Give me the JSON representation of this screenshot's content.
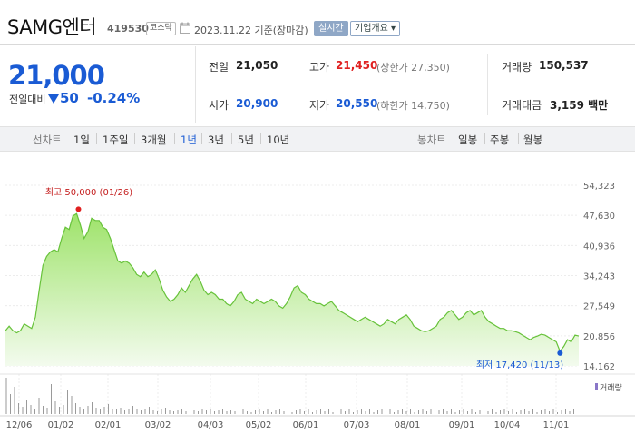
{
  "header": {
    "name": "SAMG엔터",
    "code": "419530",
    "market": "코스닥",
    "date": "2023.11.22",
    "basis": "기준(장마감)",
    "realtime_label": "실시간",
    "overview_label": "기업개요 ▾"
  },
  "quote": {
    "price": "21,000",
    "change_label": "전일대비",
    "change": "50",
    "change_pct": "-0.24%",
    "prev_label": "전일",
    "prev": "21,050",
    "high_label": "고가",
    "high": "21,450",
    "upper_limit": "(상한가 27,350)",
    "volume_label": "거래량",
    "volume": "150,537",
    "open_label": "시가",
    "open": "20,900",
    "low_label": "저가",
    "low": "20,550",
    "lower_limit": "(하한가 14,750)",
    "amount_label": "거래대금",
    "amount": "3,159 백만"
  },
  "tabs": {
    "line_label": "선차트",
    "periods": [
      "1일",
      "1주일",
      "3개월",
      "1년",
      "3년",
      "5년",
      "10년"
    ],
    "active_period": "1년",
    "candle_label": "봉차트",
    "candles": [
      "일봉",
      "주봉",
      "월봉"
    ]
  },
  "colors": {
    "up": "#e02020",
    "down": "#1a5bd4",
    "area_top": "#9ee36a",
    "area_bottom": "#f3fbee",
    "line": "#67c23a"
  },
  "chart_data": {
    "type": "area",
    "y_ticks": [
      "54,323",
      "47,630",
      "40,936",
      "34,243",
      "27,549",
      "20,856",
      "14,162"
    ],
    "ylim": [
      14162,
      54323
    ],
    "x_ticks": [
      "12/06",
      "01/02",
      "02/01",
      "03/02",
      "04/03",
      "05/02",
      "06/01",
      "07/03",
      "08/01",
      "09/01",
      "10/04",
      "11/01"
    ],
    "max_annotation": "최고 50,000 (01/26)",
    "min_annotation": "최저 17,420 (11/13)",
    "volume_label": "거래량",
    "series": [
      {
        "values": [
          22000,
          23000,
          22000,
          21500,
          22000,
          23500,
          23000,
          22500,
          25000,
          31000,
          36500,
          38500,
          39500,
          40000,
          39500,
          42500,
          45000,
          44500,
          47500,
          48000,
          45500,
          42500,
          44000,
          47000,
          46500,
          46500,
          45000,
          44500,
          42500,
          40000,
          37500,
          37000,
          37500,
          37000,
          36000,
          34500,
          34000,
          35000,
          34000,
          34500,
          35500,
          33500,
          31000,
          29500,
          28500,
          29000,
          30000,
          31500,
          30500,
          32000,
          33500,
          34500,
          33000,
          31000,
          30000,
          30500,
          30000,
          29000,
          29000,
          28000,
          27500,
          28500,
          30000,
          30500,
          29000,
          28500,
          28000,
          29000,
          28500,
          28000,
          28500,
          29000,
          28500,
          27500,
          27000,
          28000,
          29500,
          31500,
          32000,
          30500,
          30000,
          29000,
          28500,
          28000,
          28000,
          27500,
          28000,
          28500,
          27500,
          26500,
          26000,
          25500,
          25000,
          24500,
          24000,
          24500,
          25000,
          24500,
          24000,
          23500,
          23000,
          23500,
          24500,
          24000,
          23500,
          24500,
          25000,
          25500,
          24500,
          23000,
          22500,
          22000,
          21800,
          22000,
          22500,
          23000,
          24500,
          25000,
          26000,
          26500,
          25500,
          24500,
          25000,
          26000,
          26500,
          25500,
          26000,
          26500,
          25000,
          24000,
          23500,
          23000,
          22500,
          22500,
          22000,
          22000,
          21800,
          21500,
          21000,
          20500,
          20000,
          20500,
          20800,
          21200,
          21000,
          20500,
          20000,
          19500,
          17420,
          18500,
          20000,
          19500,
          21000,
          20800
        ]
      }
    ]
  }
}
